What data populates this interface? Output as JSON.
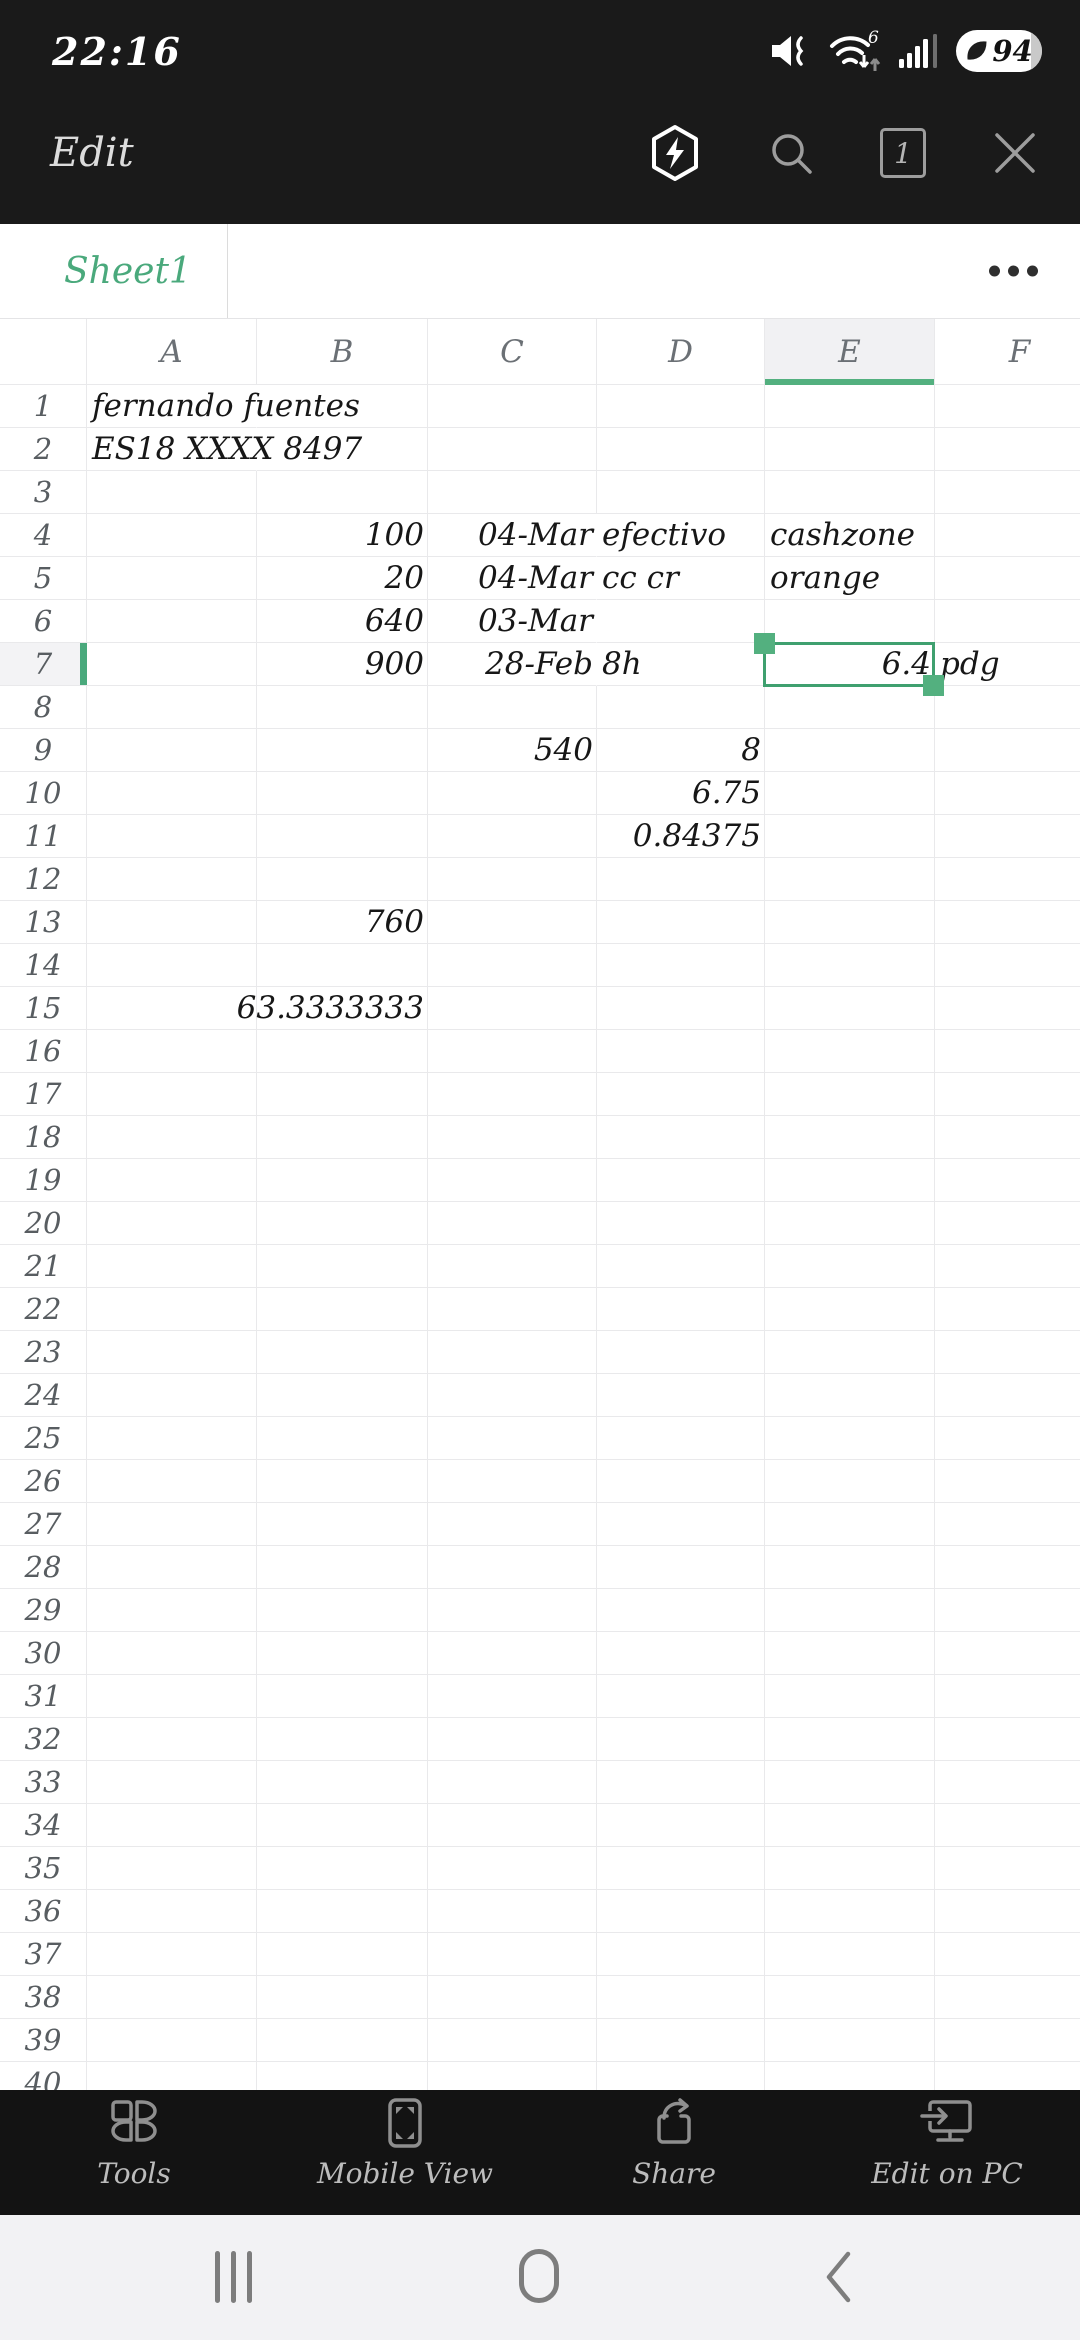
{
  "status_bar": {
    "time": "22:16",
    "battery_percent": "94",
    "icons": [
      "mute-vibrate",
      "wifi-6",
      "signal-bars",
      "battery-saver-leaf"
    ]
  },
  "edit_bar": {
    "title": "Edit",
    "doc_count": "1",
    "icons": [
      "flash-hexagon",
      "search",
      "document-count",
      "close"
    ]
  },
  "sheet_tabs": {
    "active": "Sheet1",
    "more": "more-options"
  },
  "grid": {
    "columns": [
      "A",
      "B",
      "C",
      "D",
      "E",
      "F"
    ],
    "visible_rows": 40,
    "selected_cell": "E7",
    "selected_column": "E",
    "selected_row": "7",
    "cells": {
      "A1": {
        "v": "fernando fuentes",
        "a": "l",
        "nb": true
      },
      "A2": {
        "v": "ES18 XXXX 8497",
        "a": "l",
        "nb": true
      },
      "B4": {
        "v": "100",
        "a": "r"
      },
      "C4": {
        "v": "04-Mar",
        "a": "r",
        "nb": true
      },
      "D4": {
        "v": "efectivo",
        "a": "l"
      },
      "E4": {
        "v": "cashzone",
        "a": "l"
      },
      "B5": {
        "v": "20",
        "a": "r"
      },
      "C5": {
        "v": "04-Mar",
        "a": "r",
        "nb": true
      },
      "D5": {
        "v": "cc cr",
        "a": "l"
      },
      "E5": {
        "v": "orange",
        "a": "l"
      },
      "B6": {
        "v": "640",
        "a": "r"
      },
      "C6": {
        "v": "03-Mar",
        "a": "r",
        "nb": true
      },
      "B7": {
        "v": "900",
        "a": "r"
      },
      "C7": {
        "v": "28-Feb",
        "a": "r",
        "nb": true
      },
      "D7": {
        "v": "8h",
        "a": "l"
      },
      "E7": {
        "v": "6.4",
        "a": "r"
      },
      "F7": {
        "v": "pdg",
        "a": "l"
      },
      "C9": {
        "v": "540",
        "a": "r"
      },
      "D9": {
        "v": "8",
        "a": "r"
      },
      "D10": {
        "v": "6.75",
        "a": "r"
      },
      "D11": {
        "v": "0.84375",
        "a": "r"
      },
      "B13": {
        "v": "760",
        "a": "r"
      },
      "B15": {
        "v": "63.3333333",
        "a": "r"
      }
    }
  },
  "toolbar": {
    "items": [
      {
        "label": "Tools",
        "icon": "tools-grid"
      },
      {
        "label": "Mobile View",
        "icon": "mobile-view"
      },
      {
        "label": "Share",
        "icon": "share-arrow"
      },
      {
        "label": "Edit on PC",
        "icon": "edit-on-pc"
      }
    ]
  },
  "nav_bar": {
    "items": [
      "recents",
      "home",
      "back"
    ]
  },
  "colors": {
    "accent_green": "#4aa97c",
    "selection_green": "#53b07f",
    "topbar_black": "#1a1a1a",
    "toolbar_black": "#131313",
    "navbar_gray": "#f2f2f4"
  }
}
